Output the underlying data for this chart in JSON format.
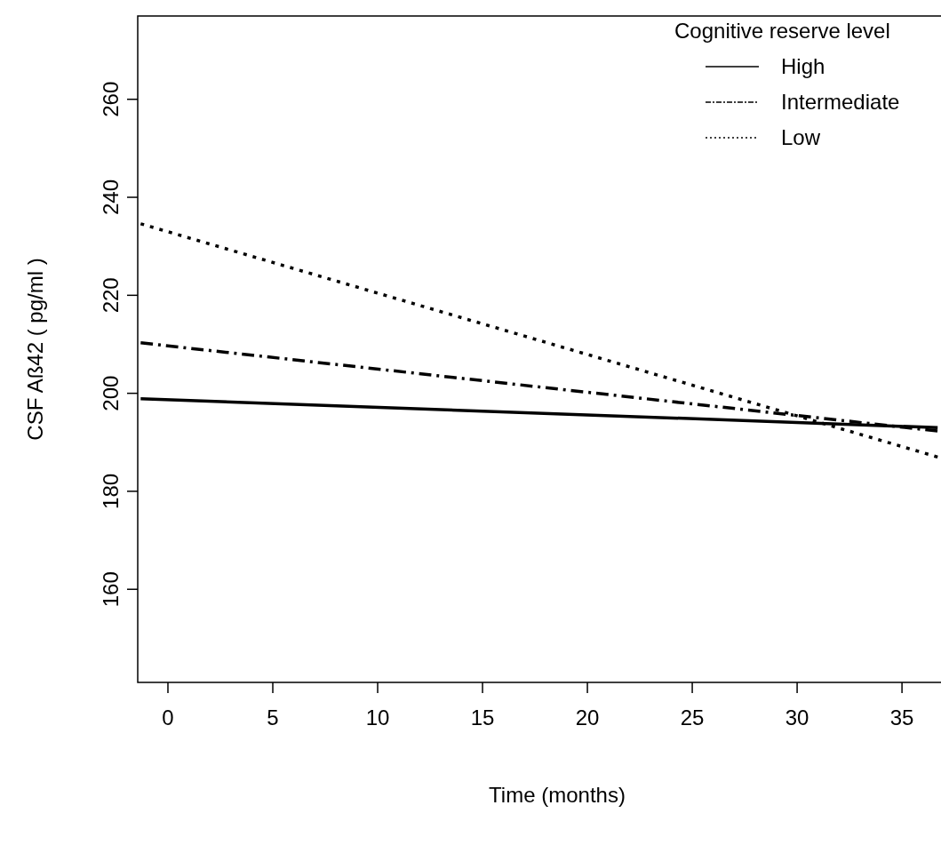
{
  "chart_data": {
    "type": "line",
    "xlabel": "Time (months)",
    "ylabel": "CSF Aß42 ( pg/ml )",
    "legend_title": "Cognitive reserve level",
    "legend": "top right",
    "xlim": [
      -1.44,
      36.86
    ],
    "ylim": [
      141,
      277
    ],
    "xticks": [
      0,
      5,
      10,
      15,
      20,
      25,
      30,
      35
    ],
    "yticks": [
      160,
      180,
      200,
      220,
      240,
      260
    ],
    "x": [
      -1.3,
      36.7
    ],
    "series": [
      {
        "name": "High",
        "color": "#000000",
        "values": [
          198.9,
          193.0
        ],
        "line_style": "solid"
      },
      {
        "name": "Intermediate",
        "color": "#000000",
        "values": [
          210.3,
          192.3
        ],
        "line_style": "dashdot"
      },
      {
        "name": "Low",
        "color": "#000000",
        "values": [
          234.6,
          187.0
        ],
        "line_style": "dotted"
      }
    ]
  }
}
